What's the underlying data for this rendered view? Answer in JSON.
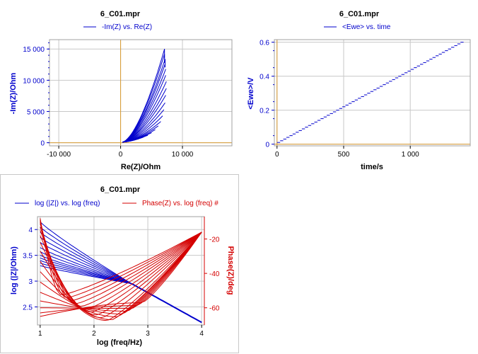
{
  "chart_data": [
    {
      "type": "line",
      "title": "6_C01.mpr",
      "legend": [
        "-Im(Z) vs. Re(Z)"
      ],
      "xlabel": "Re(Z)/Ohm",
      "ylabel": "-Im(Z)/Ohm",
      "xlim": [
        -11500,
        18000
      ],
      "ylim": [
        -500,
        16500
      ],
      "xticks": [
        -10000,
        0,
        10000
      ],
      "xtick_labels": [
        "-10 000",
        "0",
        "10 000"
      ],
      "yticks": [
        0,
        5000,
        10000,
        15000
      ],
      "ytick_labels": [
        "0",
        "5 000",
        "10 000",
        "15 000"
      ],
      "series_color": "#0000cc",
      "marker_color": "#d99a30",
      "marker_x": 0,
      "curves_end_x": [
        7100,
        7100,
        7200,
        7200,
        7300,
        7300,
        7400,
        7400,
        7300,
        7200,
        7000,
        6800,
        6500,
        6100,
        5600,
        5000,
        4400,
        3700,
        3000,
        2300
      ],
      "curves_end_y": [
        15000,
        14200,
        13400,
        12600,
        11800,
        10800,
        9800,
        8700,
        7600,
        6400,
        5300,
        4300,
        3400,
        2700,
        2100,
        1600,
        1200,
        900,
        650,
        450
      ]
    },
    {
      "type": "line",
      "title": "6_C01.mpr",
      "legend": [
        "<Ewe> vs. time"
      ],
      "xlabel": "time/s",
      "ylabel": "<Ewe>/V",
      "xlim": [
        -20,
        1450
      ],
      "ylim": [
        -0.01,
        0.615
      ],
      "xticks": [
        0,
        500,
        1000
      ],
      "xtick_labels": [
        "0",
        "500",
        "1 000"
      ],
      "yticks": [
        0,
        0.2,
        0.4,
        0.6
      ],
      "ytick_labels": [
        "0",
        "0.2",
        "0.4",
        "0.6"
      ],
      "x": [
        0,
        1400
      ],
      "y": [
        0,
        0.6
      ],
      "series_color": "#0000cc",
      "marker_color": "#d99a30"
    },
    {
      "type": "line",
      "title": "6_C01.mpr",
      "legend": [
        "log (|Z|) vs. log (freq)",
        "Phase(Z) vs. log (freq) #"
      ],
      "xlabel": "log (freq/Hz)",
      "ylabel": "log (|Z|/Ohm)",
      "y2label": "Phase(Z)/deg",
      "xlim": [
        0.95,
        4.05
      ],
      "ylim": [
        2.15,
        4.25
      ],
      "y2lim": [
        -70,
        -7
      ],
      "xticks": [
        1,
        2,
        3,
        4
      ],
      "xtick_labels": [
        "1",
        "2",
        "3",
        "4"
      ],
      "yticks": [
        2.5,
        3,
        3.5,
        4
      ],
      "ytick_labels": [
        "2.5",
        "3",
        "3.5",
        "4"
      ],
      "y2ticks": [
        -60,
        -40,
        -20
      ],
      "y2tick_labels": [
        "-60",
        "-40",
        "-20"
      ],
      "series": [
        {
          "name": "log (|Z|) vs. log (freq)",
          "color": "#0000cc",
          "start_values": [
            4.15,
            4.05,
            3.95,
            3.85,
            3.75,
            3.65,
            3.57,
            3.5,
            3.45,
            3.4,
            3.35,
            3.3
          ],
          "converge_x": 2.7,
          "converge_y": 2.95,
          "end_x": 4.0,
          "end_y": 2.2
        },
        {
          "name": "Phase(Z) vs. log (freq) #",
          "color": "#d40000",
          "start_values": [
            -8,
            -9,
            -10,
            -11,
            -13,
            -15,
            -18,
            -22,
            -27,
            -33,
            -39,
            -45,
            -51,
            -56,
            -60,
            -63,
            -65
          ],
          "end_x": 4.0,
          "end_y": -16
        }
      ]
    }
  ]
}
